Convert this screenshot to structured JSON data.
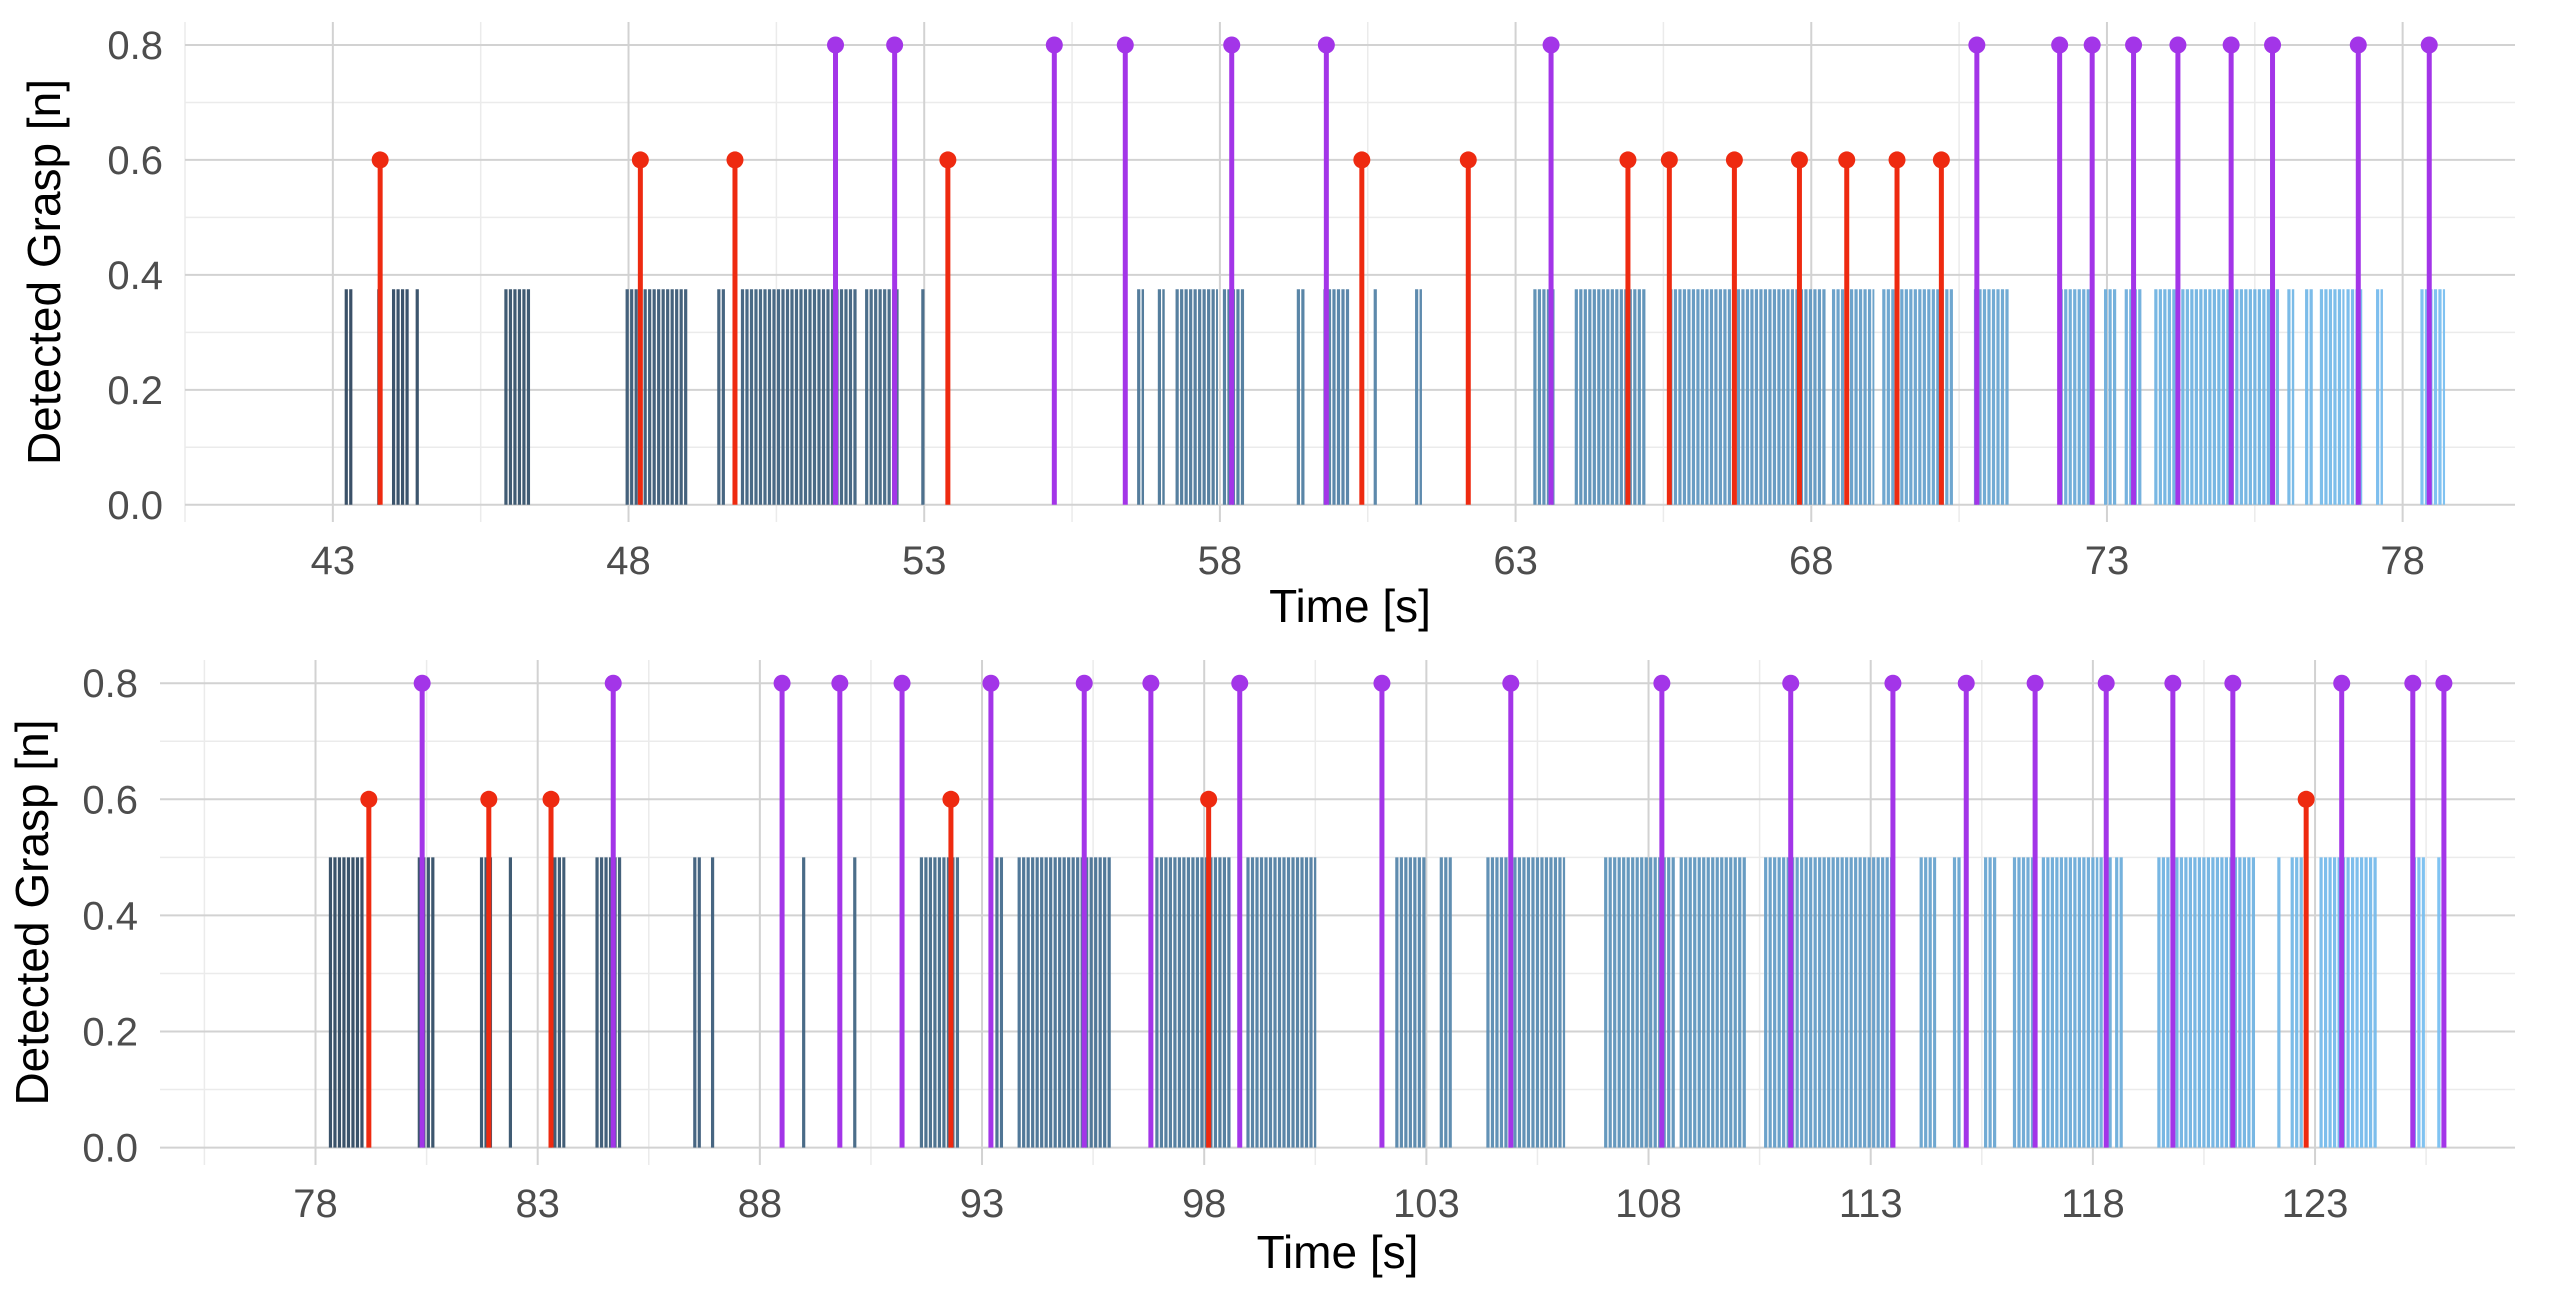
{
  "colors": {
    "grasp_early": "#2a3f55",
    "grasp_late": "#7cc4f6",
    "red_event": "#ee2a10",
    "purple_event": "#a335e8"
  },
  "chart_data": [
    {
      "type": "bar",
      "title": "",
      "xlabel": "Time [s]",
      "ylabel": "Detected Grasp [n]",
      "xlim": [
        40.5,
        79.9
      ],
      "ylim": [
        -0.03,
        0.84
      ],
      "xticks": [
        43,
        48,
        53,
        58,
        63,
        68,
        73,
        78
      ],
      "xtick_labels": [
        "43",
        "48",
        "53",
        "58",
        "63",
        "68",
        "73",
        "78"
      ],
      "yticks": [
        0.0,
        0.2,
        0.4,
        0.6,
        0.8
      ],
      "ytick_labels": [
        "0.0",
        "0.2",
        "0.4",
        "0.6",
        "0.8"
      ],
      "grasp_level": 0.375,
      "grasp_intervals": [
        [
          43.2,
          43.35
        ],
        [
          43.75,
          43.8
        ],
        [
          44.0,
          44.3
        ],
        [
          44.4,
          44.45
        ],
        [
          45.9,
          46.35
        ],
        [
          47.95,
          49.0
        ],
        [
          49.5,
          49.65
        ],
        [
          49.9,
          51.85
        ],
        [
          52.0,
          52.55
        ],
        [
          52.95,
          53.0
        ],
        [
          56.6,
          56.7
        ],
        [
          56.95,
          57.05
        ],
        [
          57.25,
          57.95
        ],
        [
          58.05,
          58.4
        ],
        [
          59.3,
          59.45
        ],
        [
          59.75,
          60.2
        ],
        [
          60.6,
          60.65
        ],
        [
          61.3,
          61.4
        ],
        [
          63.3,
          63.65
        ],
        [
          64.0,
          65.2
        ],
        [
          65.6,
          68.25
        ],
        [
          68.35,
          69.05
        ],
        [
          69.2,
          70.4
        ],
        [
          70.75,
          71.35
        ],
        [
          72.2,
          72.8
        ],
        [
          72.95,
          73.15
        ],
        [
          73.3,
          73.6
        ],
        [
          73.8,
          75.9
        ],
        [
          76.05,
          76.15
        ],
        [
          76.35,
          76.5
        ],
        [
          76.6,
          77.0
        ],
        [
          77.05,
          77.3
        ],
        [
          77.55,
          77.65
        ],
        [
          78.3,
          78.7
        ]
      ],
      "series": [
        {
          "type": "stem",
          "level": 0.6,
          "color": "red",
          "x": [
            43.8,
            48.2,
            49.8,
            53.4,
            60.4,
            62.2,
            64.9,
            65.6,
            66.7,
            67.8,
            68.6,
            69.45,
            70.2
          ]
        },
        {
          "type": "stem",
          "level": 0.8,
          "color": "purple",
          "x": [
            51.5,
            52.5,
            55.2,
            56.4,
            58.2,
            59.8,
            63.6,
            70.8,
            72.2,
            72.75,
            73.45,
            74.2,
            75.1,
            75.8,
            77.25,
            78.45
          ]
        }
      ]
    },
    {
      "type": "bar",
      "title": "",
      "xlabel": "Time [s]",
      "ylabel": "Detected Grasp [n]",
      "xlim": [
        74.5,
        127.5
      ],
      "ylim": [
        -0.03,
        0.84
      ],
      "xticks": [
        78,
        83,
        88,
        93,
        98,
        103,
        108,
        113,
        118,
        123
      ],
      "xtick_labels": [
        "78",
        "83",
        "88",
        "93",
        "98",
        "103",
        "108",
        "113",
        "118",
        "123"
      ],
      "yticks": [
        0.0,
        0.2,
        0.4,
        0.6,
        0.8
      ],
      "ytick_labels": [
        "0.0",
        "0.2",
        "0.4",
        "0.6",
        "0.8"
      ],
      "grasp_level": 0.5,
      "grasp_intervals": [
        [
          78.3,
          79.1
        ],
        [
          80.3,
          80.7
        ],
        [
          81.7,
          81.95
        ],
        [
          82.35,
          82.45
        ],
        [
          83.25,
          83.6
        ],
        [
          84.3,
          84.9
        ],
        [
          86.5,
          86.65
        ],
        [
          86.9,
          86.95
        ],
        [
          88.95,
          89.0
        ],
        [
          90.1,
          90.15
        ],
        [
          91.6,
          92.5
        ],
        [
          93.3,
          93.45
        ],
        [
          93.8,
          95.9
        ],
        [
          96.9,
          98.6
        ],
        [
          98.95,
          100.5
        ],
        [
          102.3,
          103.0
        ],
        [
          103.3,
          103.55
        ],
        [
          104.35,
          106.1
        ],
        [
          107.0,
          108.6
        ],
        [
          108.7,
          110.2
        ],
        [
          110.6,
          113.5
        ],
        [
          114.1,
          114.45
        ],
        [
          114.85,
          115.05
        ],
        [
          115.55,
          115.85
        ],
        [
          116.2,
          116.65
        ],
        [
          116.85,
          118.1
        ],
        [
          118.15,
          118.45
        ],
        [
          118.5,
          118.65
        ],
        [
          119.45,
          121.65
        ],
        [
          122.15,
          122.25
        ],
        [
          122.45,
          122.75
        ],
        [
          123.1,
          124.4
        ],
        [
          125.2,
          125.45
        ],
        [
          125.75,
          125.95
        ]
      ],
      "series": [
        {
          "type": "stem",
          "level": 0.6,
          "color": "red",
          "x": [
            79.2,
            81.9,
            83.3,
            92.3,
            98.1,
            122.8
          ]
        },
        {
          "type": "stem",
          "level": 0.8,
          "color": "purple",
          "x": [
            80.4,
            84.7,
            88.5,
            89.8,
            91.2,
            93.2,
            95.3,
            96.8,
            98.8,
            102.0,
            104.9,
            108.3,
            111.2,
            113.5,
            115.15,
            116.7,
            118.3,
            119.8,
            121.15,
            123.6,
            125.2,
            125.9
          ]
        }
      ]
    }
  ]
}
